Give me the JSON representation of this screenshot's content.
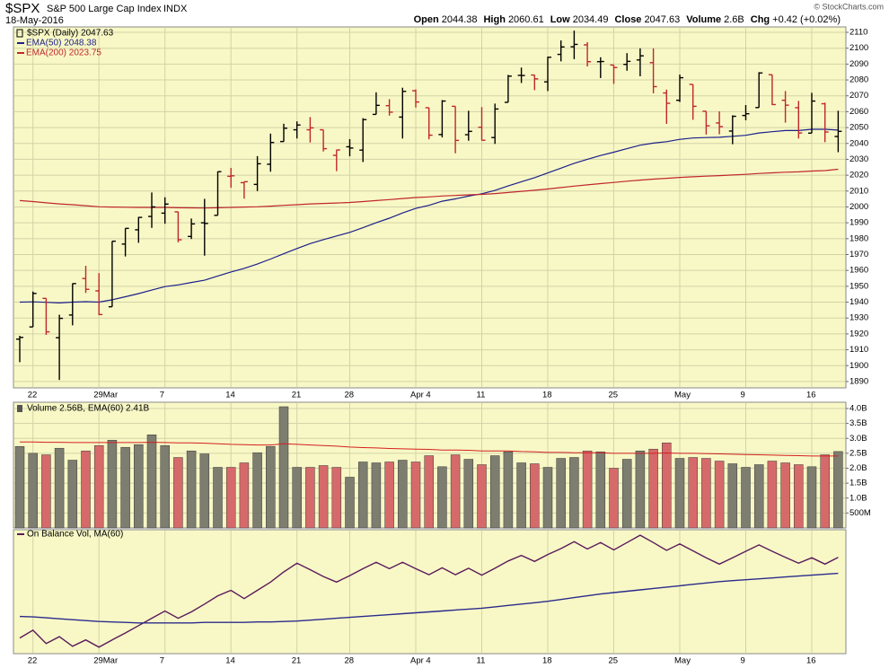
{
  "header": {
    "symbol": "$SPX",
    "description": "S&P 500 Large Cap Index",
    "exchange": "INDX",
    "date": "18-May-2016",
    "copyright": "© StockCharts.com",
    "quote": [
      {
        "label": "Open",
        "value": 2044.38
      },
      {
        "label": "High",
        "value": 2060.61
      },
      {
        "label": "Low",
        "value": 2034.49
      },
      {
        "label": "Close",
        "value": 2047.63
      },
      {
        "label": "Volume",
        "value": "2.6B"
      },
      {
        "label": "Chg",
        "value": "+0.42 (+0.02%)"
      }
    ]
  },
  "chart_data": [
    {
      "type": "ohlc",
      "legend": "$SPX (Daily) 2047.63",
      "categories": [
        null,
        "22",
        null,
        null,
        null,
        null,
        "29Mar",
        null,
        null,
        null,
        null,
        "7",
        null,
        null,
        null,
        null,
        "14",
        null,
        null,
        null,
        null,
        "21",
        null,
        null,
        null,
        "28",
        null,
        null,
        null,
        null,
        "Apr 4",
        null,
        null,
        null,
        null,
        "11",
        null,
        null,
        null,
        null,
        "18",
        null,
        null,
        null,
        null,
        "25",
        null,
        null,
        null,
        null,
        "May",
        null,
        null,
        null,
        null,
        "9",
        null,
        null,
        null,
        null,
        "16",
        null,
        null
      ],
      "open": [
        1916.7,
        1924.4,
        1942.4,
        1917.6,
        1931.9,
        1954.9,
        1947.1,
        1937.1,
        1976.6,
        1985.6,
        1994.0,
        1996.1,
        1996.9,
        1981.4,
        1990.0,
        1994.7,
        2019.3,
        2015.3,
        2014.2,
        2026.9,
        2041.2,
        2048.6,
        2048.6,
        2048.6,
        2032.5,
        2037.9,
        2035.8,
        2058.3,
        2063.8,
        2056.6,
        2073.2,
        2062.5,
        2045.6,
        2063.4,
        2045.5,
        2050.2,
        2043.7,
        2065.9,
        2082.9,
        2083.1,
        2078.8,
        2096.1,
        2100.9,
        2102.1,
        2091.5,
        2089.4,
        2089.8,
        2092.6,
        2090.9,
        2071.8,
        2067.2,
        2077.2,
        2060.3,
        2052.9,
        2047.8,
        2057.6,
        2062.6,
        2083.3,
        2067.2,
        2062.5,
        2046.5,
        2065.0,
        2044.38
      ],
      "high": [
        1918.8,
        1946.7,
        1942.4,
        1932.1,
        1951.8,
        1962.9,
        1958.3,
        1978.4,
        1986.5,
        1993.7,
        2009.1,
        2006.1,
        1997.0,
        1992.7,
        2005.1,
        2022.4,
        2024.6,
        2015.9,
        2032.0,
        2046.2,
        2052.4,
        2053.9,
        2056.6,
        2048.6,
        2036.0,
        2042.7,
        2055.9,
        2072.2,
        2067.9,
        2075.1,
        2074.0,
        2062.5,
        2067.3,
        2063.4,
        2060.6,
        2062.9,
        2065.1,
        2083.2,
        2087.8,
        2083.2,
        2094.7,
        2104.9,
        2111.1,
        2103.8,
        2094.3,
        2089.4,
        2096.9,
        2099.9,
        2099.9,
        2073.9,
        2083.4,
        2077.2,
        2060.3,
        2060.2,
        2057.7,
        2064.2,
        2084.9,
        2083.3,
        2073.0,
        2066.8,
        2071.9,
        2065.7,
        2060.61
      ],
      "low": [
        1902.2,
        1924.4,
        1919.4,
        1891.0,
        1925.4,
        1945.8,
        1931.8,
        1937.1,
        1968.8,
        1977.4,
        1986.8,
        1989.4,
        1977.7,
        1979.8,
        1969.3,
        1994.7,
        2012.1,
        2005.2,
        2010.0,
        2022.2,
        2041.2,
        2043.1,
        2040.6,
        2034.9,
        2022.5,
        2031.9,
        2028.3,
        2058.3,
        2057.5,
        2043.1,
        2062.6,
        2042.6,
        2043.8,
        2033.8,
        2041.7,
        2041.9,
        2039.7,
        2065.9,
        2078.1,
        2073.6,
        2073.0,
        2091.7,
        2093.1,
        2088.5,
        2081.2,
        2077.5,
        2085.8,
        2082.3,
        2071.6,
        2052.3,
        2066.1,
        2054.9,
        2045.6,
        2045.8,
        2039.5,
        2054.6,
        2062.6,
        2064.2,
        2053.1,
        2043.1,
        2046.5,
        2040.8,
        2034.49
      ],
      "close": [
        1917.8,
        1945.5,
        1921.3,
        1929.8,
        1951.7,
        1948.1,
        1932.2,
        1978.4,
        1986.5,
        1993.4,
        2000.0,
        2001.8,
        1979.3,
        1989.3,
        1989.6,
        2022.2,
        2019.6,
        2015.9,
        2027.2,
        2040.6,
        2049.6,
        2051.6,
        2049.8,
        2036.7,
        2035.9,
        2037.1,
        2055.0,
        2064.0,
        2059.7,
        2072.8,
        2066.1,
        2045.2,
        2066.7,
        2041.9,
        2047.6,
        2042.0,
        2061.7,
        2082.4,
        2082.8,
        2080.7,
        2094.3,
        2100.8,
        2102.4,
        2091.5,
        2091.6,
        2087.8,
        2091.7,
        2095.2,
        2075.8,
        2065.3,
        2081.4,
        2063.4,
        2051.1,
        2050.6,
        2057.1,
        2058.7,
        2084.4,
        2064.5,
        2064.1,
        2046.6,
        2066.7,
        2047.2,
        2047.63
      ],
      "up_color": "#000000",
      "down_color": "#c0272d",
      "series": [
        {
          "name": "EMA(50) 2048.38",
          "color": "#1b1f8a",
          "values": [
            1940.0,
            1940.2,
            1939.9,
            1939.5,
            1940.0,
            1940.3,
            1940.0,
            1941.5,
            1943.4,
            1945.4,
            1947.6,
            1949.8,
            1950.9,
            1952.4,
            1953.8,
            1956.5,
            1959.0,
            1961.3,
            1964.0,
            1967.2,
            1970.5,
            1973.8,
            1976.9,
            1979.4,
            1981.7,
            1984.0,
            1986.9,
            1990.0,
            1992.9,
            1996.2,
            1999.1,
            2001.0,
            2003.6,
            2005.1,
            2006.8,
            2008.3,
            2010.4,
            2013.2,
            2015.9,
            2018.4,
            2021.4,
            2024.4,
            2027.5,
            2030.0,
            2032.4,
            2034.5,
            2036.7,
            2038.9,
            2040.2,
            2041.1,
            2042.6,
            2043.4,
            2043.7,
            2043.9,
            2044.5,
            2045.1,
            2046.6,
            2047.4,
            2048.1,
            2048.1,
            2048.9,
            2048.9,
            2048.4
          ]
        },
        {
          "name": "EMA(200) 2023.75",
          "color": "#c0272d",
          "values": [
            2004.0,
            2003.4,
            2002.6,
            2001.9,
            2001.4,
            2000.8,
            2000.1,
            1999.9,
            1999.8,
            1999.7,
            1999.7,
            1999.7,
            1999.5,
            1999.4,
            1999.3,
            1999.5,
            1999.7,
            1999.9,
            2000.1,
            2000.5,
            2001.0,
            2001.4,
            2001.9,
            2002.2,
            2002.5,
            2002.8,
            2003.4,
            2004.0,
            2004.6,
            2005.3,
            2005.9,
            2006.3,
            2006.9,
            2007.2,
            2007.6,
            2007.9,
            2008.4,
            2009.1,
            2009.8,
            2010.5,
            2011.3,
            2012.2,
            2013.1,
            2013.9,
            2014.7,
            2015.4,
            2016.2,
            2016.9,
            2017.5,
            2018.0,
            2018.6,
            2019.0,
            2019.4,
            2019.7,
            2020.1,
            2020.5,
            2021.1,
            2021.5,
            2021.9,
            2022.1,
            2022.6,
            2022.9,
            2023.75
          ]
        }
      ],
      "ylim": [
        1886,
        2113.4
      ],
      "yticks": [
        1890,
        1900,
        1910,
        1920,
        1930,
        1940,
        1950,
        1960,
        1970,
        1980,
        1990,
        2000,
        2010,
        2020,
        2030,
        2040,
        2050,
        2060,
        2070,
        2080,
        2090,
        2100,
        2110
      ],
      "grid": true
    },
    {
      "type": "bar",
      "title": "Volume 2.56B, EMA(60) 2.41B",
      "values": [
        2.73,
        2.5,
        2.45,
        2.67,
        2.27,
        2.58,
        2.76,
        2.94,
        2.7,
        2.79,
        3.12,
        2.76,
        2.36,
        2.58,
        2.48,
        2.03,
        2.03,
        2.18,
        2.52,
        2.73,
        4.06,
        2.03,
        2.03,
        2.09,
        2.03,
        1.7,
        2.21,
        2.18,
        2.21,
        2.27,
        2.21,
        2.42,
        2.05,
        2.45,
        2.3,
        2.12,
        2.42,
        2.55,
        2.18,
        2.15,
        2.03,
        2.33,
        2.36,
        2.58,
        2.55,
        2.0,
        2.3,
        2.58,
        2.64,
        2.85,
        2.33,
        2.36,
        2.33,
        2.24,
        2.15,
        2.03,
        2.12,
        2.24,
        2.18,
        2.12,
        2.05,
        2.45,
        2.56
      ],
      "up_color": "#7d7d70",
      "down_color": "#d66a6a",
      "ema_color": "#d42020",
      "ema_values": [
        2.88,
        2.88,
        2.87,
        2.87,
        2.86,
        2.86,
        2.86,
        2.86,
        2.86,
        2.86,
        2.87,
        2.86,
        2.85,
        2.85,
        2.84,
        2.82,
        2.8,
        2.79,
        2.78,
        2.78,
        2.82,
        2.8,
        2.78,
        2.76,
        2.74,
        2.71,
        2.69,
        2.68,
        2.66,
        2.65,
        2.64,
        2.63,
        2.61,
        2.61,
        2.6,
        2.58,
        2.58,
        2.58,
        2.56,
        2.55,
        2.53,
        2.53,
        2.52,
        2.52,
        2.52,
        2.5,
        2.5,
        2.5,
        2.5,
        2.51,
        2.5,
        2.5,
        2.49,
        2.48,
        2.47,
        2.46,
        2.45,
        2.44,
        2.43,
        2.42,
        2.41,
        2.41,
        2.41
      ],
      "ylim": [
        0,
        4.21
      ],
      "yticks": [
        {
          "value": 0.5,
          "label": "500M"
        },
        {
          "value": 1.0,
          "label": "1.0B"
        },
        {
          "value": 1.5,
          "label": "1.5B"
        },
        {
          "value": 2.0,
          "label": "2.0B"
        },
        {
          "value": 2.5,
          "label": "2.5B"
        },
        {
          "value": 3.0,
          "label": "3.0B"
        },
        {
          "value": 3.5,
          "label": "3.5B"
        },
        {
          "value": 4.0,
          "label": "4.0B"
        }
      ],
      "grid": true
    },
    {
      "type": "line",
      "title": "On Balance Vol, MA(60)",
      "series": [
        {
          "color": "#5b1a5b",
          "values": [
            3.4,
            5.1,
            2.2,
            3.7,
            1.6,
            3.0,
            1.4,
            3.0,
            4.5,
            6.1,
            7.7,
            9.3,
            7.7,
            9.1,
            10.8,
            12.6,
            13.8,
            12.0,
            13.8,
            15.6,
            17.8,
            19.7,
            18.3,
            16.8,
            15.6,
            17.0,
            18.5,
            19.9,
            18.5,
            19.9,
            18.5,
            17.2,
            18.7,
            17.2,
            18.6,
            17.1,
            18.6,
            20.2,
            21.4,
            20.1,
            21.6,
            22.9,
            24.4,
            22.8,
            24.2,
            22.6,
            24.2,
            25.8,
            24.2,
            22.5,
            23.9,
            22.4,
            20.9,
            19.5,
            20.9,
            22.3,
            23.7,
            22.3,
            21.0,
            19.7,
            20.9,
            19.5,
            21.0
          ]
        },
        {
          "color": "#2b2b8c",
          "values": [
            8.1,
            8.0,
            7.8,
            7.6,
            7.4,
            7.2,
            7.0,
            6.9,
            6.8,
            6.7,
            6.7,
            6.7,
            6.7,
            6.7,
            6.8,
            6.8,
            6.8,
            6.8,
            6.9,
            6.9,
            7.0,
            7.1,
            7.3,
            7.5,
            7.7,
            7.9,
            8.1,
            8.3,
            8.5,
            8.7,
            8.9,
            9.1,
            9.3,
            9.5,
            9.7,
            9.9,
            10.2,
            10.5,
            10.8,
            11.1,
            11.4,
            11.8,
            12.2,
            12.6,
            13.0,
            13.3,
            13.6,
            13.9,
            14.2,
            14.5,
            14.8,
            15.1,
            15.4,
            15.7,
            15.9,
            16.1,
            16.3,
            16.5,
            16.7,
            16.9,
            17.1,
            17.3,
            17.5
          ]
        }
      ],
      "ylim": [
        0,
        27
      ]
    }
  ]
}
